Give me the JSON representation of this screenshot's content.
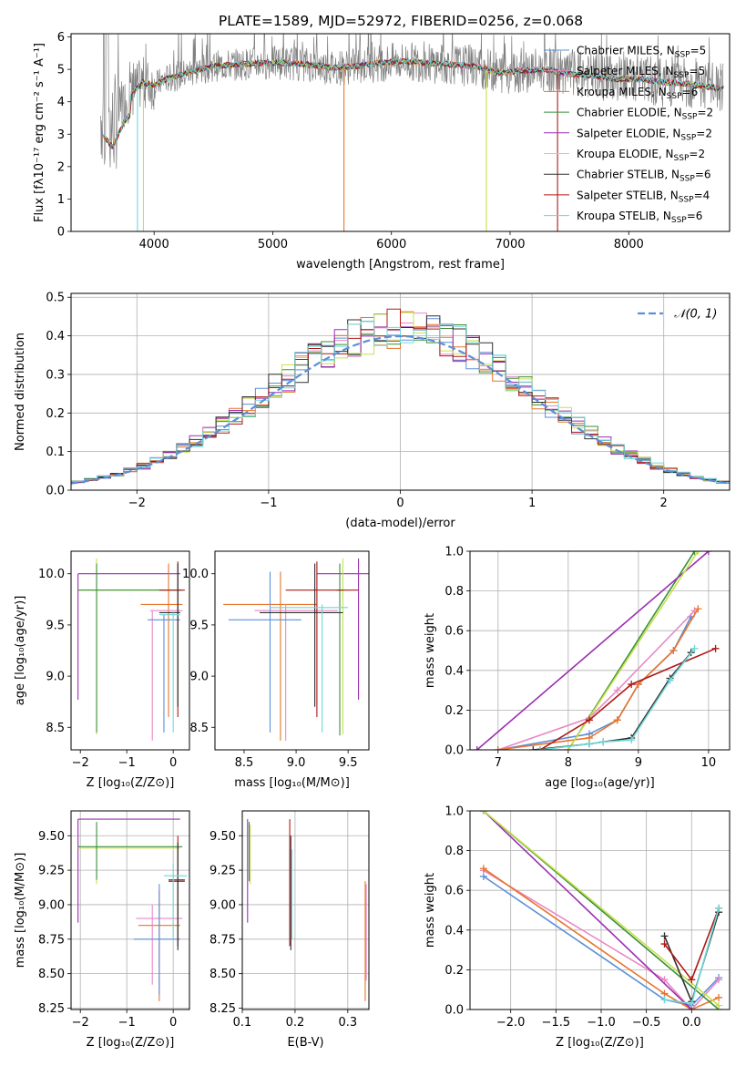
{
  "title": "PLATE=1589, MJD=52972, FIBERID=0256, z=0.068",
  "colors": {
    "chabrier_miles": "#5b8fd9",
    "salpeter_miles": "#e889c4",
    "kroupa_miles": "#e8742a",
    "chabrier_elodie": "#3a8f3a",
    "salpeter_elodie": "#9a2fb0",
    "kroupa_elodie": "#c8e04a",
    "chabrier_stelib": "#303030",
    "salpeter_stelib": "#b01818",
    "kroupa_stelib": "#6fd8d8",
    "data": "#808080",
    "normal": "#5b8fd9"
  },
  "chart_data": [
    {
      "id": "spectrum",
      "type": "line",
      "xlabel": "wavelength [Angstrom, rest frame]",
      "ylabel": "Flux [fλ10⁻¹⁷ erg cm⁻² s⁻¹ A⁻¹]",
      "xlim": [
        3300,
        8850
      ],
      "ylim": [
        0,
        6.1
      ],
      "xticks": [
        4000,
        5000,
        6000,
        7000,
        8000
      ],
      "yticks": [
        0,
        1,
        2,
        3,
        4,
        5,
        6
      ],
      "data_x": [
        3560,
        3650,
        3750,
        3900,
        4000,
        4100,
        4300,
        4500,
        4700,
        4900,
        5100,
        5300,
        5500,
        5700,
        5900,
        6100,
        6300,
        6500,
        6700,
        6900,
        7100,
        7300,
        7500,
        7700,
        7900,
        8100,
        8300,
        8500,
        8700,
        8800
      ],
      "data_y": [
        3.6,
        3.2,
        4.0,
        4.6,
        4.5,
        4.7,
        4.9,
        5.1,
        5.15,
        5.2,
        5.2,
        5.15,
        5.05,
        5.1,
        5.2,
        5.25,
        5.2,
        5.15,
        5.1,
        4.9,
        4.95,
        5.0,
        4.85,
        4.8,
        4.7,
        4.7,
        4.6,
        4.55,
        4.45,
        4.4
      ],
      "legend": [
        {
          "label": "Chabrier MILES, N",
          "sub": "SSP",
          "tail": "=5",
          "color_key": "chabrier_miles"
        },
        {
          "label": "Salpeter MILES, N",
          "sub": "SSP",
          "tail": "=5",
          "color_key": "salpeter_miles"
        },
        {
          "label": "Kroupa MILES, N",
          "sub": "SSP",
          "tail": "=6",
          "color_key": "kroupa_miles"
        },
        {
          "label": "Chabrier ELODIE, N",
          "sub": "SSP",
          "tail": "=2",
          "color_key": "chabrier_elodie"
        },
        {
          "label": "Salpeter ELODIE, N",
          "sub": "SSP",
          "tail": "=2",
          "color_key": "salpeter_elodie"
        },
        {
          "label": "Kroupa ELODIE, N",
          "sub": "SSP",
          "tail": "=2",
          "color_key": "kroupa_elodie"
        },
        {
          "label": "Chabrier STELIB, N",
          "sub": "SSP",
          "tail": "=6",
          "color_key": "chabrier_stelib"
        },
        {
          "label": "Salpeter STELIB, N",
          "sub": "SSP",
          "tail": "=4",
          "color_key": "salpeter_stelib"
        },
        {
          "label": "Kroupa STELIB, N",
          "sub": "SSP",
          "tail": "=6",
          "color_key": "kroupa_stelib"
        }
      ],
      "legend_loc": "upper right"
    },
    {
      "id": "residuals",
      "type": "line",
      "xlabel": "(data-model)/error",
      "ylabel": "Normed distribution",
      "xlim": [
        -2.5,
        2.5
      ],
      "ylim": [
        0,
        0.51
      ],
      "xticks": [
        -2,
        -1,
        0,
        1,
        2
      ],
      "yticks": [
        0.0,
        0.1,
        0.2,
        0.3,
        0.4,
        0.5
      ],
      "grid": true,
      "legend": [
        "𝒩(0, 1)"
      ],
      "legend_loc": "upper right",
      "bin_width": 0.1,
      "bin_start": -2.5
    },
    {
      "id": "age_vs_Z",
      "type": "errorbar",
      "xlabel": "Z [log₁₀(Z/Z⊙)]",
      "ylabel": "age [log₁₀(age/yr)]",
      "xlim": [
        -2.2,
        0.35
      ],
      "ylim": [
        8.28,
        10.22
      ],
      "xticks": [
        -2,
        -1,
        0
      ],
      "yticks": [
        8.5,
        9.0,
        9.5,
        10.0
      ]
    },
    {
      "id": "age_vs_mass",
      "type": "errorbar",
      "xlabel": "mass [log₁₀(M/M⊙)]",
      "xlim": [
        8.22,
        9.7
      ],
      "ylim": [
        8.28,
        10.22
      ],
      "xticks": [
        8.5,
        9.0,
        9.5
      ],
      "yticks": [
        8.5,
        9.0,
        9.5,
        10.0
      ]
    },
    {
      "id": "massweight_vs_age",
      "type": "line",
      "xlabel": "age [log₁₀(age/yr)]",
      "ylabel": "mass weight",
      "xlim": [
        6.6,
        10.3
      ],
      "ylim": [
        0,
        1.0
      ],
      "xticks": [
        7,
        8,
        9,
        10
      ],
      "yticks": [
        0.0,
        0.2,
        0.4,
        0.6,
        0.8,
        1.0
      ],
      "grid": true,
      "series": [
        {
          "color_key": "chabrier_miles",
          "x": [
            7.0,
            8.3,
            8.7,
            9.0,
            9.5,
            9.75
          ],
          "y": [
            0.0,
            0.08,
            0.15,
            0.33,
            0.5,
            0.67
          ]
        },
        {
          "color_key": "salpeter_miles",
          "x": [
            7.0,
            8.3,
            8.7,
            9.8
          ],
          "y": [
            0.0,
            0.16,
            0.3,
            0.7
          ]
        },
        {
          "color_key": "kroupa_miles",
          "x": [
            7.0,
            8.3,
            8.7,
            9.0,
            9.5,
            9.85
          ],
          "y": [
            0.0,
            0.06,
            0.15,
            0.33,
            0.5,
            0.71
          ]
        },
        {
          "color_key": "chabrier_elodie",
          "x": [
            8.0,
            9.8
          ],
          "y": [
            0.0,
            1.0
          ]
        },
        {
          "color_key": "salpeter_elodie",
          "x": [
            6.7,
            10.0
          ],
          "y": [
            0.0,
            1.0
          ]
        },
        {
          "color_key": "kroupa_elodie",
          "x": [
            8.0,
            9.85
          ],
          "y": [
            0.0,
            1.0
          ]
        },
        {
          "color_key": "chabrier_stelib",
          "x": [
            7.5,
            8.3,
            8.5,
            8.9,
            9.45,
            9.75
          ],
          "y": [
            0.0,
            0.03,
            0.04,
            0.06,
            0.36,
            0.49
          ]
        },
        {
          "color_key": "salpeter_stelib",
          "x": [
            7.6,
            8.3,
            8.9,
            10.1
          ],
          "y": [
            0.0,
            0.15,
            0.33,
            0.51
          ]
        },
        {
          "color_key": "kroupa_stelib",
          "x": [
            7.6,
            8.3,
            8.5,
            8.9,
            9.45,
            9.8
          ],
          "y": [
            0.0,
            0.03,
            0.04,
            0.05,
            0.35,
            0.51
          ]
        }
      ]
    },
    {
      "id": "mass_vs_Z",
      "type": "errorbar",
      "xlabel": "Z [log₁₀(Z/Z⊙)]",
      "ylabel": "mass [log₁₀(M/M⊙)]",
      "xlim": [
        -2.2,
        0.35
      ],
      "ylim": [
        8.24,
        9.68
      ],
      "xticks": [
        -2,
        -1,
        0
      ],
      "yticks": [
        8.25,
        8.5,
        8.75,
        9.0,
        9.25,
        9.5
      ],
      "grid": true
    },
    {
      "id": "mass_vs_ebv",
      "type": "errorbar",
      "xlabel": "E(B-V)",
      "xlim": [
        0.1,
        0.34
      ],
      "ylim": [
        8.24,
        9.68
      ],
      "xticks": [
        0.1,
        0.2,
        0.3
      ],
      "yticks": [
        8.25,
        8.5,
        8.75,
        9.0,
        9.25,
        9.5
      ],
      "grid": true
    },
    {
      "id": "massweight_vs_Z",
      "type": "line",
      "xlabel": "Z [log₁₀(Z/Z⊙)]",
      "ylabel": "mass weight",
      "xlim": [
        -2.45,
        0.42
      ],
      "ylim": [
        0,
        1.0
      ],
      "xticks": [
        -2.0,
        -1.5,
        -1.0,
        -0.5,
        0.0
      ],
      "yticks": [
        0.0,
        0.2,
        0.4,
        0.6,
        0.8,
        1.0
      ],
      "grid": true,
      "series": [
        {
          "color_key": "chabrier_miles",
          "x": [
            -2.3,
            -0.3,
            0.0,
            0.3
          ],
          "y": [
            0.67,
            0.05,
            0.02,
            0.16
          ]
        },
        {
          "color_key": "salpeter_miles",
          "x": [
            -2.3,
            -0.3,
            0.0,
            0.3
          ],
          "y": [
            0.7,
            0.15,
            0.0,
            0.15
          ]
        },
        {
          "color_key": "kroupa_miles",
          "x": [
            -2.3,
            -0.3,
            0.0,
            0.3
          ],
          "y": [
            0.71,
            0.08,
            0.0,
            0.06
          ]
        },
        {
          "color_key": "chabrier_elodie",
          "x": [
            -2.3,
            0.3
          ],
          "y": [
            1.0,
            0.0
          ]
        },
        {
          "color_key": "salpeter_elodie",
          "x": [
            -2.3,
            0.0
          ],
          "y": [
            1.0,
            0.0
          ]
        },
        {
          "color_key": "kroupa_elodie",
          "x": [
            -2.3,
            0.3
          ],
          "y": [
            1.0,
            0.02
          ]
        },
        {
          "color_key": "chabrier_stelib",
          "x": [
            -0.3,
            0.0,
            0.3
          ],
          "y": [
            0.37,
            0.04,
            0.49
          ]
        },
        {
          "color_key": "salpeter_stelib",
          "x": [
            -0.3,
            0.0,
            0.3
          ],
          "y": [
            0.33,
            0.15,
            0.51
          ]
        },
        {
          "color_key": "kroupa_stelib",
          "x": [
            -0.3,
            0.0,
            0.3
          ],
          "y": [
            0.05,
            0.03,
            0.51
          ]
        }
      ]
    }
  ]
}
